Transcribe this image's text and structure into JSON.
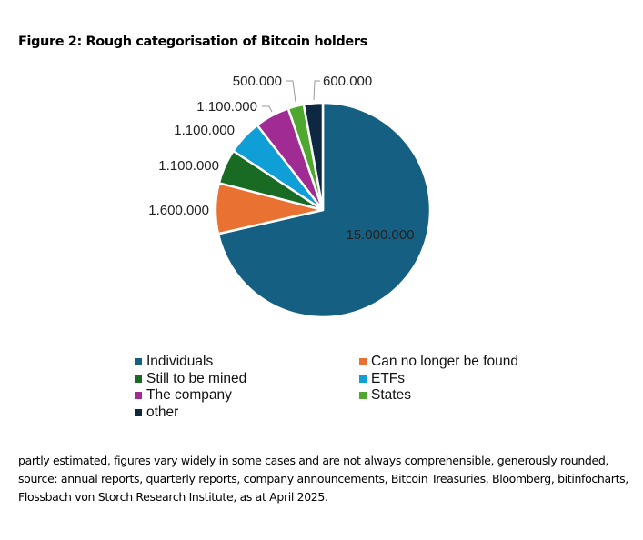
{
  "title": "Figure 2: Rough categorisation of Bitcoin holders",
  "chart_data": {
    "type": "pie",
    "title": "Figure 2: Rough categorisation of Bitcoin holders",
    "start_angle": "12 o'clock, clockwise",
    "legend_placement": "bottom",
    "slices": [
      {
        "name": "Individuals",
        "value": 15000000,
        "label": "15.000.000",
        "color": "#156082"
      },
      {
        "name": "Can no longer be found",
        "value": 1600000,
        "label": "1.600.000",
        "color": "#e97132"
      },
      {
        "name": "Still to be mined",
        "value": 1100000,
        "label": "1.100.000",
        "color": "#196b24"
      },
      {
        "name": "ETFs",
        "value": 1100000,
        "label": "1.100.000",
        "color": "#0f9ed5"
      },
      {
        "name": "The company",
        "value": 1100000,
        "label": "1.100.000",
        "color": "#a02b93"
      },
      {
        "name": "States",
        "value": 500000,
        "label": "500.000",
        "color": "#4ea72e"
      },
      {
        "name": "other",
        "value": 600000,
        "label": "600.000",
        "color": "#0e2841"
      }
    ]
  },
  "note": "partly estimated, figures vary widely in some cases and are not always comprehensible, generously rounded, source: annual reports, quarterly reports, company announcements, Bitcoin Treasuries, Bloomberg, bitinfocharts, Flossbach von Storch Research Institute, as at April 2025."
}
